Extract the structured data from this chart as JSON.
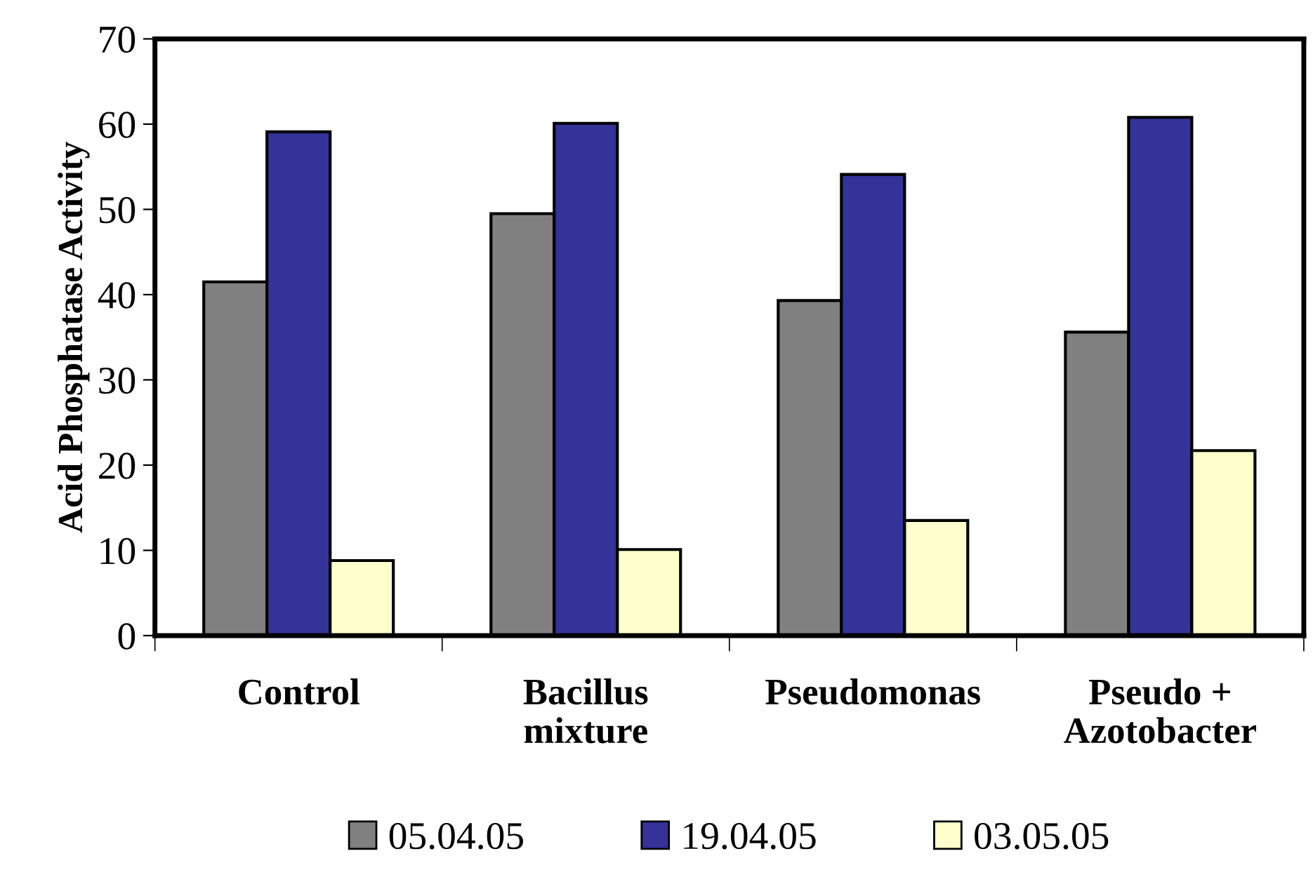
{
  "chart_data": {
    "type": "bar",
    "ylabel": "Acid Phosphatase Activity",
    "categories": [
      "Control",
      "Bacillus\nmixture",
      "Pseudomonas",
      "Pseudo +\nAzotobacter"
    ],
    "series": [
      {
        "name": "05.04.05",
        "color": "#808080",
        "values": [
          41.5,
          49.5,
          39.3,
          35.6
        ]
      },
      {
        "name": "19.04.05",
        "color": "#333399",
        "values": [
          59.1,
          60.1,
          54.1,
          60.8
        ]
      },
      {
        "name": "03.05.05",
        "color": "#ffffcc",
        "values": [
          8.8,
          10.1,
          13.5,
          21.7
        ]
      }
    ],
    "ylim": [
      0,
      70
    ],
    "yticks": [
      0,
      10,
      20,
      30,
      40,
      50,
      60,
      70
    ],
    "grid": false,
    "legend": "bottom"
  }
}
